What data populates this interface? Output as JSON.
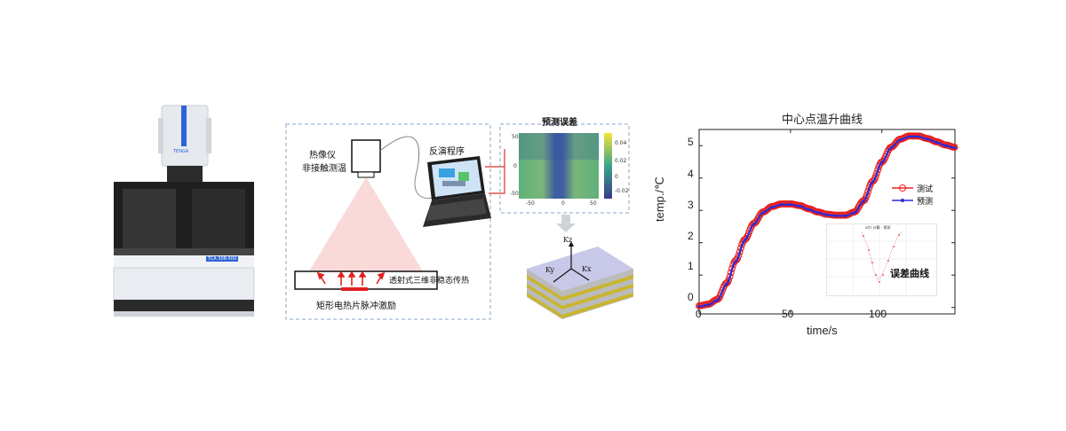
{
  "diagram": {
    "camera_label": "热像仪",
    "camera_sublabel": "非接触测温",
    "program_label": "反演程序",
    "sample_label": "透射式三维非稳态传热",
    "heater_label": "矩形电热片脉冲激励",
    "error_panel_title": "预测误差",
    "error_y_ticks": [
      "50",
      "0",
      "-50"
    ],
    "error_x_ticks": [
      "-50",
      "0",
      "50"
    ],
    "error_colorbar_ticks": [
      "0.04",
      "0.02",
      "0",
      "-0.02"
    ],
    "kz_label": "Kz",
    "ky_label": "Ky",
    "kx_label": "Kx",
    "instrument_badge": "TCA 30R-500",
    "instrument_logo": "TENGA"
  },
  "chart_data": {
    "type": "line",
    "title": "中心点温升曲线",
    "xlabel": "time/s",
    "ylabel": "temp./℃",
    "xlim": [
      0,
      140
    ],
    "ylim": [
      -0.2,
      5.5
    ],
    "x_ticks": [
      "0",
      "50",
      "100"
    ],
    "y_ticks": [
      "0",
      "1",
      "2",
      "3",
      "4",
      "5"
    ],
    "legend_position": "right",
    "series": [
      {
        "name": "测试",
        "color": "#e8231f",
        "x": [
          0,
          5,
          10,
          15,
          20,
          25,
          30,
          35,
          40,
          45,
          50,
          55,
          60,
          65,
          70,
          75,
          80,
          85,
          90,
          95,
          100,
          105,
          110,
          115,
          120,
          125,
          130,
          135,
          140
        ],
        "y": [
          0.05,
          0.1,
          0.25,
          0.75,
          1.45,
          2.1,
          2.6,
          2.95,
          3.12,
          3.2,
          3.2,
          3.15,
          3.05,
          2.95,
          2.88,
          2.85,
          2.85,
          2.95,
          3.3,
          3.9,
          4.5,
          4.95,
          5.2,
          5.3,
          5.3,
          5.22,
          5.12,
          5.02,
          4.95
        ],
        "marker": "circle"
      },
      {
        "name": "预测",
        "color": "#2a2ad8",
        "x": [
          0,
          5,
          10,
          15,
          20,
          25,
          30,
          35,
          40,
          45,
          50,
          55,
          60,
          65,
          70,
          75,
          80,
          85,
          90,
          95,
          100,
          105,
          110,
          115,
          120,
          125,
          130,
          135,
          140
        ],
        "y": [
          0.03,
          0.08,
          0.22,
          0.72,
          1.42,
          2.08,
          2.58,
          2.93,
          3.1,
          3.18,
          3.18,
          3.13,
          3.03,
          2.93,
          2.86,
          2.83,
          2.83,
          2.93,
          3.28,
          3.88,
          4.48,
          4.93,
          5.18,
          5.28,
          5.28,
          5.2,
          5.1,
          5.0,
          4.93
        ],
        "marker": "dot"
      }
    ],
    "inset_label": "误差曲线",
    "inset_title": "x(t) 计算 - 预测"
  }
}
